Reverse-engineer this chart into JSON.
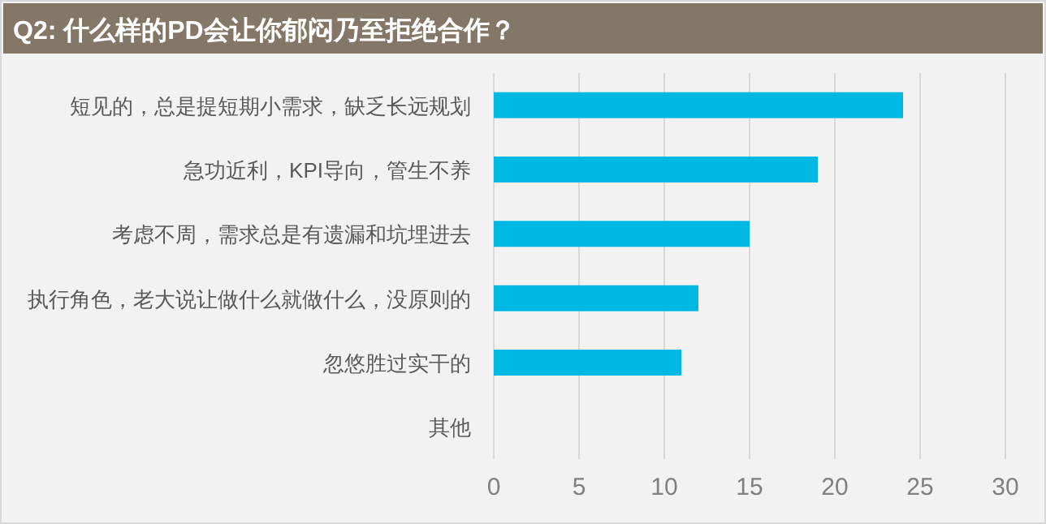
{
  "chart_data": {
    "type": "bar",
    "orientation": "horizontal",
    "title": "Q2: 什么样的PD会让你郁闷乃至拒绝合作？",
    "categories": [
      "短见的，总是提短期小需求，缺乏长远规划",
      "急功近利，KPI导向，管生不养",
      "考虑不周，需求总是有遗漏和坑埋进去",
      "执行角色，老大说让做什么就做什么，没原则的",
      "忽悠胜过实干的",
      "其他"
    ],
    "values": [
      24,
      19,
      15,
      12,
      11,
      0
    ],
    "color": "#00b9e3",
    "xlim": [
      0,
      30
    ],
    "xticks": [
      0,
      5,
      10,
      15,
      20,
      25,
      30
    ],
    "grid": "x"
  }
}
